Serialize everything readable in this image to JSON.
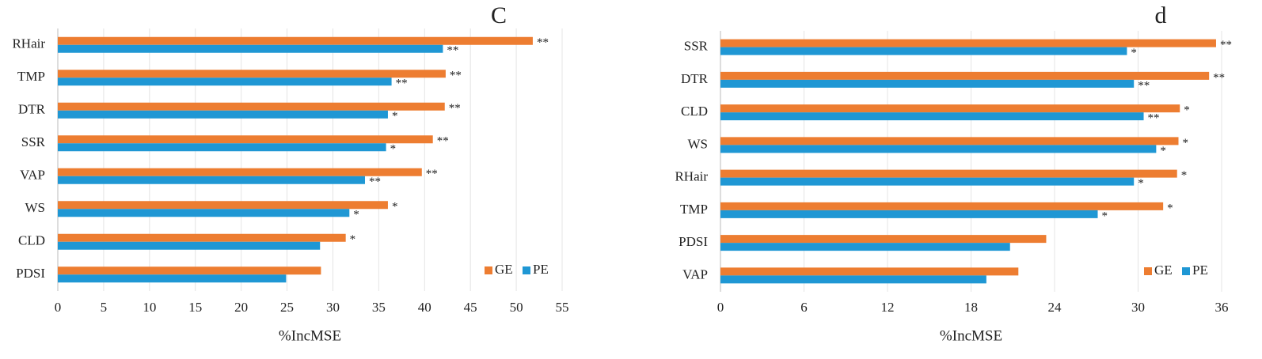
{
  "chart_data": [
    {
      "type": "bar",
      "orientation": "horizontal",
      "title": "C",
      "x_label": "%IncMSE",
      "categories": [
        "RHair",
        "TMP",
        "DTR",
        "SSR",
        "VAP",
        "WS",
        "CLD",
        "PDSI"
      ],
      "series": [
        {
          "name": "GE",
          "color": "#ed7d31",
          "values": [
            51.8,
            42.3,
            42.2,
            40.9,
            39.7,
            36.0,
            31.4,
            28.7
          ],
          "annotations": [
            "**",
            "**",
            "**",
            "**",
            "**",
            "*",
            "*",
            null
          ]
        },
        {
          "name": "PE",
          "color": "#1f97d4",
          "values": [
            42.0,
            36.4,
            36.0,
            35.8,
            33.5,
            31.8,
            28.6,
            24.9
          ],
          "annotations": [
            "**",
            "**",
            "*",
            "*",
            "**",
            "*",
            null,
            null
          ]
        }
      ],
      "xlim": [
        0,
        55
      ],
      "xticks": [
        0,
        5,
        10,
        15,
        20,
        25,
        30,
        35,
        40,
        45,
        50,
        55
      ],
      "grid": true,
      "legend": "lower right"
    },
    {
      "type": "bar",
      "orientation": "horizontal",
      "title": "d",
      "x_label": "%IncMSE",
      "categories": [
        "SSR",
        "DTR",
        "CLD",
        "WS",
        "RHair",
        "TMP",
        "PDSI",
        "VAP"
      ],
      "series": [
        {
          "name": "GE",
          "color": "#ed7d31",
          "values": [
            35.6,
            35.1,
            33.0,
            32.9,
            32.8,
            31.8,
            23.4,
            21.4
          ],
          "annotations": [
            "**",
            "**",
            "*",
            "*",
            "*",
            "*",
            null,
            null
          ]
        },
        {
          "name": "PE",
          "color": "#1f97d4",
          "values": [
            29.2,
            29.7,
            30.4,
            31.3,
            29.7,
            27.1,
            20.8,
            19.1
          ],
          "annotations": [
            "*",
            "**",
            "**",
            "*",
            "*",
            "*",
            null,
            null
          ]
        }
      ],
      "xlim": [
        0,
        36
      ],
      "xticks": [
        0,
        6,
        12,
        18,
        24,
        30,
        36
      ],
      "grid": true,
      "legend": "lower right"
    }
  ]
}
